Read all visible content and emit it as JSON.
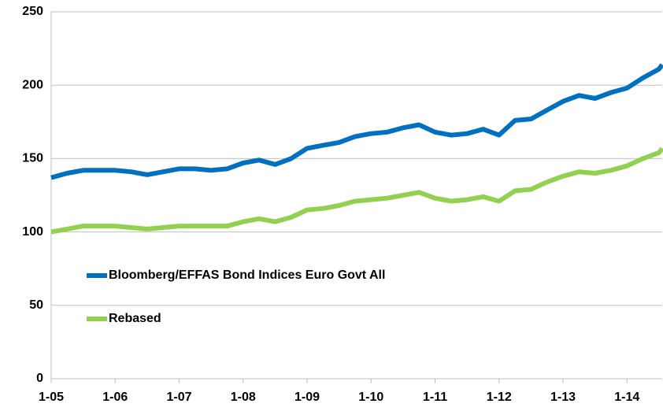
{
  "chart_data": {
    "type": "line",
    "x": [
      2005.0,
      2005.25,
      2005.5,
      2005.75,
      2006.0,
      2006.25,
      2006.5,
      2006.75,
      2007.0,
      2007.25,
      2007.5,
      2007.75,
      2008.0,
      2008.25,
      2008.5,
      2008.75,
      2009.0,
      2009.25,
      2009.5,
      2009.75,
      2010.0,
      2010.25,
      2010.5,
      2010.75,
      2011.0,
      2011.25,
      2011.5,
      2011.75,
      2012.0,
      2012.25,
      2012.5,
      2012.75,
      2013.0,
      2013.25,
      2013.5,
      2013.75,
      2014.0,
      2014.25,
      2014.5,
      2014.55
    ],
    "series": [
      {
        "name": "Bloomberg/EFFAS Bond Indices Euro Govt All",
        "color": "#0070c0",
        "values": [
          137,
          140,
          142,
          142,
          142,
          141,
          139,
          141,
          143,
          143,
          142,
          143,
          147,
          149,
          146,
          150,
          157,
          159,
          161,
          165,
          167,
          168,
          171,
          173,
          168,
          166,
          167,
          170,
          166,
          176,
          177,
          183,
          189,
          193,
          191,
          195,
          198,
          205,
          211,
          214
        ]
      },
      {
        "name": "Rebased",
        "color": "#92d050",
        "values": [
          100,
          102,
          104,
          104,
          104,
          103,
          102,
          103,
          104,
          104,
          104,
          104,
          107,
          109,
          107,
          110,
          115,
          116,
          118,
          121,
          122,
          123,
          125,
          127,
          123,
          121,
          122,
          124,
          121,
          128,
          129,
          134,
          138,
          141,
          140,
          142,
          145,
          150,
          154,
          157
        ]
      }
    ],
    "xlim": [
      2005,
      2014.55
    ],
    "xticks": [
      {
        "value": 2005,
        "label": "1-05"
      },
      {
        "value": 2006,
        "label": "1-06"
      },
      {
        "value": 2007,
        "label": "1-07"
      },
      {
        "value": 2008,
        "label": "1-08"
      },
      {
        "value": 2009,
        "label": "1-09"
      },
      {
        "value": 2010,
        "label": "1-10"
      },
      {
        "value": 2011,
        "label": "1-11"
      },
      {
        "value": 2012,
        "label": "1-12"
      },
      {
        "value": 2013,
        "label": "1-13"
      },
      {
        "value": 2014,
        "label": "1-14"
      }
    ],
    "ylim": [
      0,
      250
    ],
    "yticks": [
      0,
      50,
      100,
      150,
      200,
      250
    ],
    "grid": true,
    "legend": "center-left"
  }
}
